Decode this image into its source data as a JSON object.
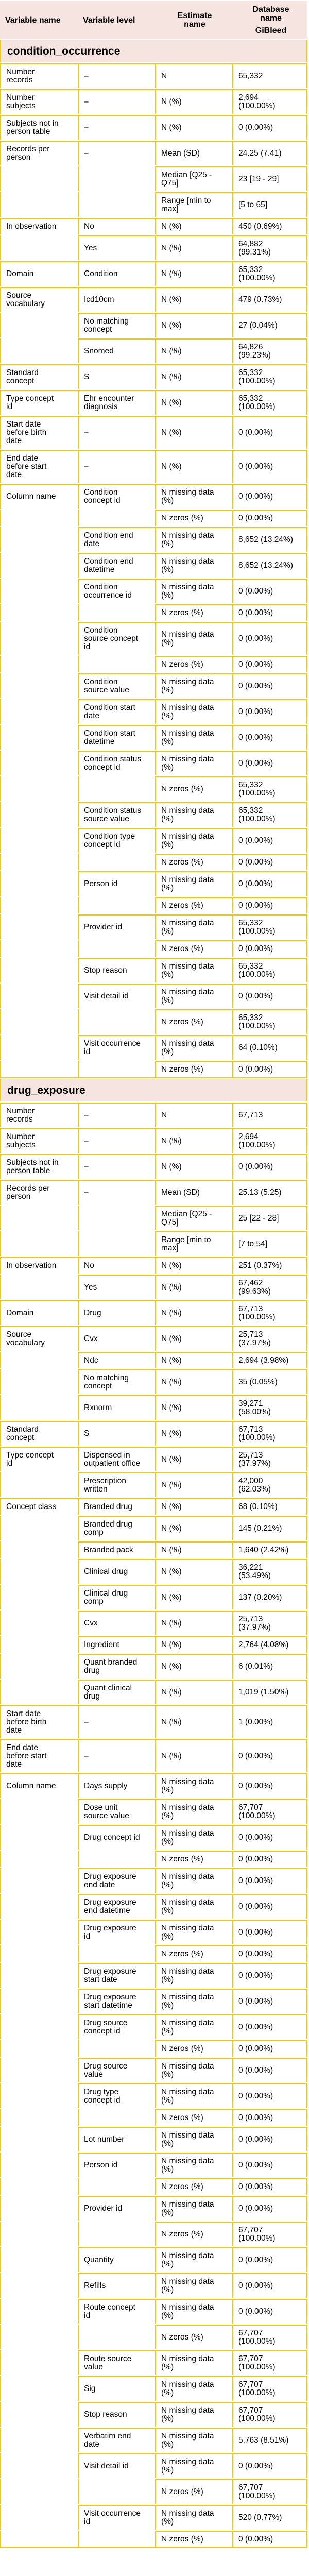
{
  "colors": {
    "border": "#ecc90a",
    "band_background": "#f6e4e1",
    "text": "#000000",
    "body_background": "#ffffff"
  },
  "header": {
    "variable_name": "Variable name",
    "variable_level": "Variable level",
    "estimate_name": "Estimate name",
    "database_group": "Database name",
    "database_name": "GiBleed"
  },
  "sections": [
    {
      "name": "condition_occurrence",
      "rows": [
        {
          "variable": "Number records",
          "level": "–",
          "estimate": "N",
          "value": "65,332"
        },
        {
          "variable": "Number subjects",
          "level": "–",
          "estimate": "N (%)",
          "value": "2,694 (100.00%)"
        },
        {
          "variable": "Subjects not in person table",
          "level": "–",
          "estimate": "N (%)",
          "value": "0 (0.00%)"
        },
        {
          "variable": "Records per person",
          "level": "–",
          "estimate": "Mean (SD)",
          "value": "24.25 (7.41)"
        },
        {
          "estimate": "Median [Q25 - Q75]",
          "value": "23 [19 - 29]"
        },
        {
          "estimate": "Range [min to max]",
          "value": "[5 to 65]"
        },
        {
          "variable": "In observation",
          "level": "No",
          "estimate": "N (%)",
          "value": "450 (0.69%)"
        },
        {
          "level": "Yes",
          "estimate": "N (%)",
          "value": "64,882 (99.31%)"
        },
        {
          "variable": "Domain",
          "level": "Condition",
          "estimate": "N (%)",
          "value": "65,332 (100.00%)"
        },
        {
          "variable": "Source vocabulary",
          "level": "Icd10cm",
          "estimate": "N (%)",
          "value": "479 (0.73%)"
        },
        {
          "level": "No matching concept",
          "estimate": "N (%)",
          "value": "27 (0.04%)"
        },
        {
          "level": "Snomed",
          "estimate": "N (%)",
          "value": "64,826 (99.23%)"
        },
        {
          "variable": "Standard concept",
          "level": "S",
          "estimate": "N (%)",
          "value": "65,332 (100.00%)"
        },
        {
          "variable": "Type concept id",
          "level": "Ehr encounter diagnosis",
          "estimate": "N (%)",
          "value": "65,332 (100.00%)"
        },
        {
          "variable": "Start date before birth date",
          "level": "–",
          "estimate": "N (%)",
          "value": "0 (0.00%)"
        },
        {
          "variable": "End date before start date",
          "level": "–",
          "estimate": "N (%)",
          "value": "0 (0.00%)"
        },
        {
          "variable": "Column name",
          "level": "Condition concept id",
          "estimate": "N missing data (%)",
          "value": "0 (0.00%)"
        },
        {
          "estimate": "N zeros (%)",
          "value": "0 (0.00%)"
        },
        {
          "level": "Condition end date",
          "estimate": "N missing data (%)",
          "value": "8,652 (13.24%)"
        },
        {
          "level": "Condition end datetime",
          "estimate": "N missing data (%)",
          "value": "8,652 (13.24%)"
        },
        {
          "level": "Condition occurrence id",
          "estimate": "N missing data (%)",
          "value": "0 (0.00%)"
        },
        {
          "estimate": "N zeros (%)",
          "value": "0 (0.00%)"
        },
        {
          "level": "Condition source concept id",
          "estimate": "N missing data (%)",
          "value": "0 (0.00%)"
        },
        {
          "estimate": "N zeros (%)",
          "value": "0 (0.00%)"
        },
        {
          "level": "Condition source value",
          "estimate": "N missing data (%)",
          "value": "0 (0.00%)"
        },
        {
          "level": "Condition start date",
          "estimate": "N missing data (%)",
          "value": "0 (0.00%)"
        },
        {
          "level": "Condition start datetime",
          "estimate": "N missing data (%)",
          "value": "0 (0.00%)"
        },
        {
          "level": "Condition status concept id",
          "estimate": "N missing data (%)",
          "value": "0 (0.00%)"
        },
        {
          "estimate": "N zeros (%)",
          "value": "65,332 (100.00%)"
        },
        {
          "level": "Condition status source value",
          "estimate": "N missing data (%)",
          "value": "65,332 (100.00%)"
        },
        {
          "level": "Condition type concept id",
          "estimate": "N missing data (%)",
          "value": "0 (0.00%)"
        },
        {
          "estimate": "N zeros (%)",
          "value": "0 (0.00%)"
        },
        {
          "level": "Person id",
          "estimate": "N missing data (%)",
          "value": "0 (0.00%)"
        },
        {
          "estimate": "N zeros (%)",
          "value": "0 (0.00%)"
        },
        {
          "level": "Provider id",
          "estimate": "N missing data (%)",
          "value": "65,332 (100.00%)"
        },
        {
          "estimate": "N zeros (%)",
          "value": "0 (0.00%)"
        },
        {
          "level": "Stop reason",
          "estimate": "N missing data (%)",
          "value": "65,332 (100.00%)"
        },
        {
          "level": "Visit detail id",
          "estimate": "N missing data (%)",
          "value": "0 (0.00%)"
        },
        {
          "estimate": "N zeros (%)",
          "value": "65,332 (100.00%)"
        },
        {
          "level": "Visit occurrence id",
          "estimate": "N missing data (%)",
          "value": "64 (0.10%)"
        },
        {
          "estimate": "N zeros (%)",
          "value": "0 (0.00%)"
        }
      ]
    },
    {
      "name": "drug_exposure",
      "rows": [
        {
          "variable": "Number records",
          "level": "–",
          "estimate": "N",
          "value": "67,713"
        },
        {
          "variable": "Number subjects",
          "level": "–",
          "estimate": "N (%)",
          "value": "2,694 (100.00%)"
        },
        {
          "variable": "Subjects not in person table",
          "level": "–",
          "estimate": "N (%)",
          "value": "0 (0.00%)"
        },
        {
          "variable": "Records per person",
          "level": "–",
          "estimate": "Mean (SD)",
          "value": "25.13 (5.25)"
        },
        {
          "estimate": "Median [Q25 - Q75]",
          "value": "25 [22 - 28]"
        },
        {
          "estimate": "Range [min to max]",
          "value": "[7 to 54]"
        },
        {
          "variable": "In observation",
          "level": "No",
          "estimate": "N (%)",
          "value": "251 (0.37%)"
        },
        {
          "level": "Yes",
          "estimate": "N (%)",
          "value": "67,462 (99.63%)"
        },
        {
          "variable": "Domain",
          "level": "Drug",
          "estimate": "N (%)",
          "value": "67,713 (100.00%)"
        },
        {
          "variable": "Source vocabulary",
          "level": "Cvx",
          "estimate": "N (%)",
          "value": "25,713 (37.97%)"
        },
        {
          "level": "Ndc",
          "estimate": "N (%)",
          "value": "2,694 (3.98%)"
        },
        {
          "level": "No matching concept",
          "estimate": "N (%)",
          "value": "35 (0.05%)"
        },
        {
          "level": "Rxnorm",
          "estimate": "N (%)",
          "value": "39,271 (58.00%)"
        },
        {
          "variable": "Standard concept",
          "level": "S",
          "estimate": "N (%)",
          "value": "67,713 (100.00%)"
        },
        {
          "variable": "Type concept id",
          "level": "Dispensed in outpatient office",
          "estimate": "N (%)",
          "value": "25,713 (37.97%)"
        },
        {
          "level": "Prescription written",
          "estimate": "N (%)",
          "value": "42,000 (62.03%)"
        },
        {
          "variable": "Concept class",
          "level": "Branded drug",
          "estimate": "N (%)",
          "value": "68 (0.10%)"
        },
        {
          "level": "Branded drug comp",
          "estimate": "N (%)",
          "value": "145 (0.21%)"
        },
        {
          "level": "Branded pack",
          "estimate": "N (%)",
          "value": "1,640 (2.42%)"
        },
        {
          "level": "Clinical drug",
          "estimate": "N (%)",
          "value": "36,221 (53.49%)"
        },
        {
          "level": "Clinical drug comp",
          "estimate": "N (%)",
          "value": "137 (0.20%)"
        },
        {
          "level": "Cvx",
          "estimate": "N (%)",
          "value": "25,713 (37.97%)"
        },
        {
          "level": "Ingredient",
          "estimate": "N (%)",
          "value": "2,764 (4.08%)"
        },
        {
          "level": "Quant branded drug",
          "estimate": "N (%)",
          "value": "6 (0.01%)"
        },
        {
          "level": "Quant clinical drug",
          "estimate": "N (%)",
          "value": "1,019 (1.50%)"
        },
        {
          "variable": "Start date before birth date",
          "level": "–",
          "estimate": "N (%)",
          "value": "1 (0.00%)"
        },
        {
          "variable": "End date before start date",
          "level": "–",
          "estimate": "N (%)",
          "value": "0 (0.00%)"
        },
        {
          "variable": "Column name",
          "level": "Days supply",
          "estimate": "N missing data (%)",
          "value": "0 (0.00%)"
        },
        {
          "level": "Dose unit source value",
          "estimate": "N missing data (%)",
          "value": "67,707 (100.00%)"
        },
        {
          "level": "Drug concept id",
          "estimate": "N missing data (%)",
          "value": "0 (0.00%)"
        },
        {
          "estimate": "N zeros (%)",
          "value": "0 (0.00%)"
        },
        {
          "level": "Drug exposure end date",
          "estimate": "N missing data (%)",
          "value": "0 (0.00%)"
        },
        {
          "level": "Drug exposure end datetime",
          "estimate": "N missing data (%)",
          "value": "0 (0.00%)"
        },
        {
          "level": "Drug exposure id",
          "estimate": "N missing data (%)",
          "value": "0 (0.00%)"
        },
        {
          "estimate": "N zeros (%)",
          "value": "0 (0.00%)"
        },
        {
          "level": "Drug exposure start date",
          "estimate": "N missing data (%)",
          "value": "0 (0.00%)"
        },
        {
          "level": "Drug exposure start datetime",
          "estimate": "N missing data (%)",
          "value": "0 (0.00%)"
        },
        {
          "level": "Drug source concept id",
          "estimate": "N missing data (%)",
          "value": "0 (0.00%)"
        },
        {
          "estimate": "N zeros (%)",
          "value": "0 (0.00%)"
        },
        {
          "level": "Drug source value",
          "estimate": "N missing data (%)",
          "value": "0 (0.00%)"
        },
        {
          "level": "Drug type concept id",
          "estimate": "N missing data (%)",
          "value": "0 (0.00%)"
        },
        {
          "estimate": "N zeros (%)",
          "value": "0 (0.00%)"
        },
        {
          "level": "Lot number",
          "estimate": "N missing data (%)",
          "value": "0 (0.00%)"
        },
        {
          "level": "Person id",
          "estimate": "N missing data (%)",
          "value": "0 (0.00%)"
        },
        {
          "estimate": "N zeros (%)",
          "value": "0 (0.00%)"
        },
        {
          "level": "Provider id",
          "estimate": "N missing data (%)",
          "value": "0 (0.00%)"
        },
        {
          "estimate": "N zeros (%)",
          "value": "67,707 (100.00%)"
        },
        {
          "level": "Quantity",
          "estimate": "N missing data (%)",
          "value": "0 (0.00%)"
        },
        {
          "level": "Refills",
          "estimate": "N missing data (%)",
          "value": "0 (0.00%)"
        },
        {
          "level": "Route concept id",
          "estimate": "N missing data (%)",
          "value": "0 (0.00%)"
        },
        {
          "estimate": "N zeros (%)",
          "value": "67,707 (100.00%)"
        },
        {
          "level": "Route source value",
          "estimate": "N missing data (%)",
          "value": "67,707 (100.00%)"
        },
        {
          "level": "Sig",
          "estimate": "N missing data (%)",
          "value": "67,707 (100.00%)"
        },
        {
          "level": "Stop reason",
          "estimate": "N missing data (%)",
          "value": "67,707 (100.00%)"
        },
        {
          "level": "Verbatim end date",
          "estimate": "N missing data (%)",
          "value": "5,763 (8.51%)"
        },
        {
          "level": "Visit detail id",
          "estimate": "N missing data (%)",
          "value": "0 (0.00%)"
        },
        {
          "estimate": "N zeros (%)",
          "value": "67,707 (100.00%)"
        },
        {
          "level": "Visit occurrence id",
          "estimate": "N missing data (%)",
          "value": "520 (0.77%)"
        },
        {
          "estimate": "N zeros (%)",
          "value": "0 (0.00%)"
        }
      ]
    }
  ]
}
